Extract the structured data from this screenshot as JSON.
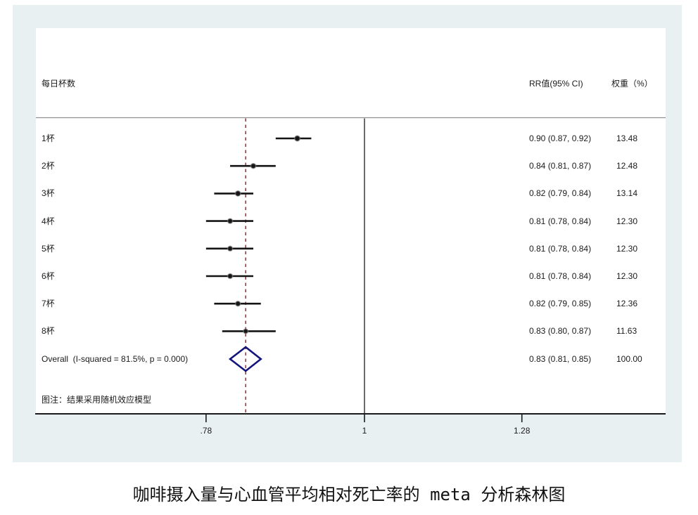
{
  "header": {
    "group_label": "每日杯数",
    "rr_label": "RR值(95% CI)",
    "weight_label": "权重（%）"
  },
  "note": "图注：结果采用随机效应模型",
  "caption": "咖啡摄入量与心血管平均相对死亡率的 meta 分析森林图",
  "chart_data": {
    "type": "forest",
    "x_scale": "log",
    "x_ticks": [
      {
        "label": ".78",
        "value": 0.78
      },
      {
        "label": "1",
        "value": 1
      },
      {
        "label": "1.28",
        "value": 1.28
      }
    ],
    "ref_line_value": 1,
    "dashed_line_value": 0.83,
    "studies": [
      {
        "label": "1杯",
        "rr": 0.9,
        "lo": 0.87,
        "hi": 0.92,
        "rr_text": "0.90 (0.87, 0.92)",
        "weight": 13.48,
        "weight_text": "13.48"
      },
      {
        "label": "2杯",
        "rr": 0.84,
        "lo": 0.81,
        "hi": 0.87,
        "rr_text": "0.84 (0.81, 0.87)",
        "weight": 12.48,
        "weight_text": "12.48"
      },
      {
        "label": "3杯",
        "rr": 0.82,
        "lo": 0.79,
        "hi": 0.84,
        "rr_text": "0.82 (0.79, 0.84)",
        "weight": 13.14,
        "weight_text": "13.14"
      },
      {
        "label": "4杯",
        "rr": 0.81,
        "lo": 0.78,
        "hi": 0.84,
        "rr_text": "0.81 (0.78, 0.84)",
        "weight": 12.3,
        "weight_text": "12.30"
      },
      {
        "label": "5杯",
        "rr": 0.81,
        "lo": 0.78,
        "hi": 0.84,
        "rr_text": "0.81 (0.78, 0.84)",
        "weight": 12.3,
        "weight_text": "12.30"
      },
      {
        "label": "6杯",
        "rr": 0.81,
        "lo": 0.78,
        "hi": 0.84,
        "rr_text": "0.81 (0.78, 0.84)",
        "weight": 12.3,
        "weight_text": "12.30"
      },
      {
        "label": "7杯",
        "rr": 0.82,
        "lo": 0.79,
        "hi": 0.85,
        "rr_text": "0.82 (0.79, 0.85)",
        "weight": 12.36,
        "weight_text": "12.36"
      },
      {
        "label": "8杯",
        "rr": 0.83,
        "lo": 0.8,
        "hi": 0.87,
        "rr_text": "0.83 (0.80, 0.87)",
        "weight": 11.63,
        "weight_text": "11.63"
      }
    ],
    "overall": {
      "label": "Overall  (I-squared = 81.5%, p = 0.000)",
      "rr": 0.83,
      "lo": 0.81,
      "hi": 0.85,
      "rr_text": "0.83 (0.81, 0.85)",
      "weight_text": "100.00"
    }
  },
  "colors": {
    "graph_bg": "#e9f0f1",
    "plot_bg": "#ffffff",
    "dashed_line": "#9c3a44",
    "ref_line": "#6b6b6b",
    "separator": "#909090",
    "axis": "#1a1a1a",
    "ci": "#141414",
    "marker": "#151515",
    "diamond": "#14147e",
    "text": "#1a1a1a"
  }
}
